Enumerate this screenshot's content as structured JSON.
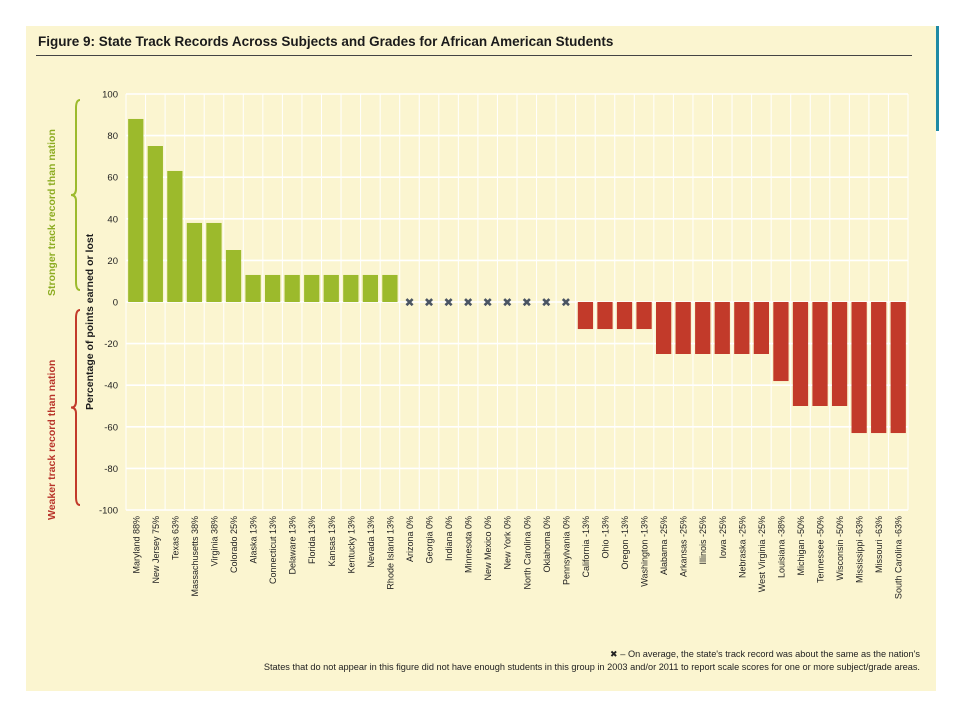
{
  "figure": {
    "title": "Figure 9: State Track Records Across Subjects and Grades for African American Students",
    "stronger_label": "Stronger track record than nation",
    "weaker_label": "Weaker track record than nation",
    "footnote_1": "✖ – On average, the state's track record was about the same as the nation's",
    "footnote_2": "States that do not appear in this figure did not have enough students in this group in 2003 and/or 2011 to report scale scores for one or more subject/grade areas."
  },
  "colors": {
    "background": "#fbf5d0",
    "positive": "#9cba2c",
    "negative": "#c23a2a",
    "marker": "#4b5563",
    "title_rule": "#444444"
  },
  "chart_data": {
    "type": "bar",
    "title": "Figure 9: State Track Records Across Subjects and Grades for African American Students",
    "ylabel": "Percentage of points earned or lost",
    "ylim": [
      -100,
      100
    ],
    "yticks": [
      "100",
      "80",
      "60",
      "40",
      "20",
      "0",
      "-20",
      "-40",
      "-60",
      "-80",
      "-100"
    ],
    "grid": true,
    "categories": [
      "Maryland 88%",
      "New Jersey 75%",
      "Texas 63%",
      "Massachusetts 38%",
      "Virginia 38%",
      "Colorado 25%",
      "Alaska 13%",
      "Connecticut 13%",
      "Delaware 13%",
      "Florida 13%",
      "Kansas 13%",
      "Kentucky 13%",
      "Nevada 13%",
      "Rhode Island 13%",
      "Arizona 0%",
      "Georgia 0%",
      "Indiana 0%",
      "Minnesota 0%",
      "New Mexico 0%",
      "New York 0%",
      "North Carolina 0%",
      "Oklahoma 0%",
      "Pennsylvania 0%",
      "California -13%",
      "Ohio -13%",
      "Oregon -13%",
      "Washington -13%",
      "Alabama -25%",
      "Arkansas -25%",
      "Illinois -25%",
      "Iowa -25%",
      "Nebraska -25%",
      "West Virginia -25%",
      "Louisiana -38%",
      "Michigan -50%",
      "Tennessee -50%",
      "Wisconsin -50%",
      "Mississippi -63%",
      "Missouri -63%",
      "South Carolina -63%"
    ],
    "values": [
      88,
      75,
      63,
      38,
      38,
      25,
      13,
      13,
      13,
      13,
      13,
      13,
      13,
      13,
      0,
      0,
      0,
      0,
      0,
      0,
      0,
      0,
      0,
      -13,
      -13,
      -13,
      -13,
      -25,
      -25,
      -25,
      -25,
      -25,
      -25,
      -38,
      -50,
      -50,
      -50,
      -63,
      -63,
      -63
    ],
    "marker_for_zero": "✖"
  }
}
